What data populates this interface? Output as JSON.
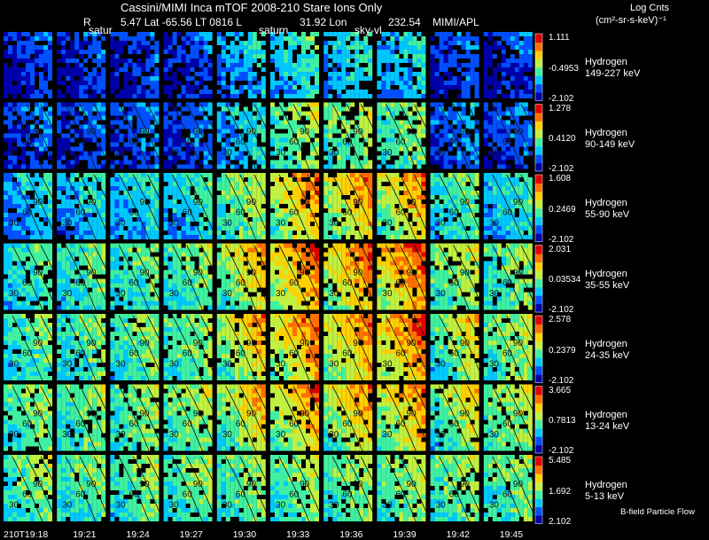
{
  "header": {
    "title": "Cassini/MIMI Inca mTOF  2008-210    Stare    Ions Only",
    "orbit_r": "R",
    "orbit_lat": "5.47 Lat -65.56 LT 0816 L",
    "orbit_lon": "31.92 Lon",
    "orbit_extra": "232.54",
    "credit": "MIMI/APL",
    "units_title": "Log Cnts",
    "units_label": "(cm²-sr-s-keV)⁻¹"
  },
  "annotations": {
    "saturn_col2": "satur",
    "saturn_col6": "saturn",
    "sky_col8": "sky-vl"
  },
  "cbar_label": "B-field Particle Flow",
  "time_axis": [
    "210T19:18",
    "19:21",
    "19:24",
    "19:27",
    "19:30",
    "19:33",
    "19:36",
    "19:39",
    "19:42",
    "19:45"
  ],
  "colors": {
    "colormap": [
      "#0000aa",
      "#0050ff",
      "#00c8ff",
      "#40f0a0",
      "#c0f040",
      "#ffd000",
      "#ff7000",
      "#e00000"
    ]
  },
  "chart_data": {
    "type": "heatmap",
    "title": "Cassini/MIMI Inca mTOF 2008-210 Stare Ions Only",
    "xlabel": "time",
    "categories": [
      "210T19:18",
      "19:21",
      "19:24",
      "19:27",
      "19:30",
      "19:33",
      "19:36",
      "19:39",
      "19:42",
      "19:45"
    ],
    "contour_labels": [
      "30",
      "60",
      "90"
    ],
    "series": [
      {
        "name": "Hydrogen",
        "energy": "149-227 keV",
        "cmax": "1.111",
        "cmid": "-0.4953",
        "cmin": "-2.102",
        "intensity": [
          0.12,
          0.12,
          0.13,
          0.13,
          0.28,
          0.35,
          0.33,
          0.3,
          0.16,
          0.13
        ]
      },
      {
        "name": "Hydrogen",
        "energy": "90-149 keV",
        "cmax": "1.278",
        "cmid": "0.4120",
        "cmin": "-2.102",
        "intensity": [
          0.16,
          0.17,
          0.18,
          0.18,
          0.32,
          0.48,
          0.48,
          0.45,
          0.22,
          0.18
        ]
      },
      {
        "name": "Hydrogen",
        "energy": "55-90 keV",
        "cmax": "1.608",
        "cmid": "0.2469",
        "cmin": "-2.102",
        "intensity": [
          0.3,
          0.31,
          0.32,
          0.34,
          0.48,
          0.64,
          0.62,
          0.62,
          0.4,
          0.35
        ]
      },
      {
        "name": "Hydrogen",
        "energy": "35-55 keV",
        "cmax": "2.031",
        "cmid": "0.03534",
        "cmin": "-2.102",
        "intensity": [
          0.4,
          0.41,
          0.42,
          0.44,
          0.58,
          0.68,
          0.66,
          0.7,
          0.5,
          0.45
        ]
      },
      {
        "name": "Hydrogen",
        "energy": "24-35 keV",
        "cmax": "2.578",
        "cmid": "0.2379",
        "cmin": "-2.102",
        "intensity": [
          0.42,
          0.43,
          0.44,
          0.46,
          0.58,
          0.66,
          0.64,
          0.7,
          0.52,
          0.48
        ]
      },
      {
        "name": "Hydrogen",
        "energy": "13-24 keV",
        "cmax": "3.665",
        "cmid": "0.7813",
        "cmin": "-2.102",
        "intensity": [
          0.46,
          0.46,
          0.47,
          0.48,
          0.56,
          0.62,
          0.6,
          0.62,
          0.52,
          0.5
        ]
      },
      {
        "name": "Hydrogen",
        "energy": "5-13 keV",
        "cmax": "5.485",
        "cmid": "1.692",
        "cmin": "2.102",
        "intensity": [
          0.45,
          0.44,
          0.45,
          0.45,
          0.46,
          0.47,
          0.47,
          0.48,
          0.46,
          0.45
        ]
      }
    ]
  }
}
